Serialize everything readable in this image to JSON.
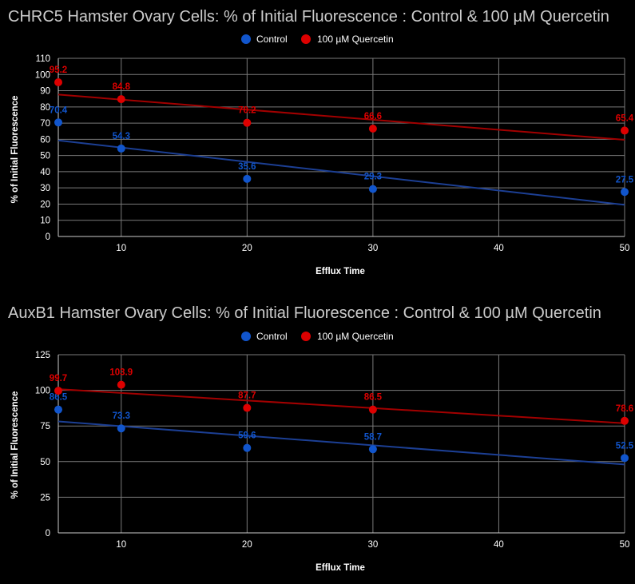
{
  "chart_data": [
    {
      "type": "scatter",
      "title": "CHRC5 Hamster Ovary Cells: % of Initial Fluorescence : Control & 100 µM Quercetin",
      "xlabel": "Efflux Time",
      "ylabel": "% of Initial Fluorescence",
      "xlim": [
        5,
        50
      ],
      "ylim": [
        0,
        110
      ],
      "x_ticks": [
        10,
        20,
        30,
        40,
        50
      ],
      "y_ticks": [
        0,
        10,
        20,
        30,
        40,
        50,
        60,
        70,
        80,
        90,
        100,
        110
      ],
      "grid": true,
      "legend_position": "top",
      "trendlines": true,
      "series": [
        {
          "name": "Control",
          "color": "#1155cc",
          "x": [
            5,
            10,
            20,
            30,
            50
          ],
          "y": [
            70.4,
            54.3,
            35.6,
            29.3,
            27.5
          ],
          "labels": [
            "70.4",
            "54.3",
            "35.6",
            "29.3",
            "27.5"
          ],
          "trendline_color": "#1c3f94"
        },
        {
          "name": "100 µM Quercetin",
          "color": "#dd0000",
          "x": [
            5,
            10,
            20,
            30,
            50
          ],
          "y": [
            95.2,
            84.8,
            70.2,
            66.6,
            65.4
          ],
          "labels": [
            "95.2",
            "84.8",
            "70.2",
            "66.6",
            "65.4"
          ],
          "trendline_color": "#a20000"
        }
      ]
    },
    {
      "type": "scatter",
      "title": "AuxB1 Hamster Ovary Cells: % of Initial Fluorescence : Control & 100 µM Quercetin",
      "xlabel": "Efflux Time",
      "ylabel": "% of Initial Fluorescence",
      "xlim": [
        5,
        50
      ],
      "ylim": [
        0,
        125
      ],
      "x_ticks": [
        10,
        20,
        30,
        40,
        50
      ],
      "y_ticks": [
        0,
        25,
        50,
        75,
        100,
        125
      ],
      "grid": true,
      "legend_position": "top",
      "trendlines": true,
      "series": [
        {
          "name": "Control",
          "color": "#1155cc",
          "x": [
            5,
            10,
            20,
            30,
            50
          ],
          "y": [
            86.5,
            73.3,
            59.6,
            58.7,
            52.5
          ],
          "labels": [
            "86.5",
            "73.3",
            "59.6",
            "58.7",
            "52.5"
          ],
          "trendline_color": "#1c3f94"
        },
        {
          "name": "100 µM Quercetin",
          "color": "#dd0000",
          "x": [
            5,
            10,
            20,
            30,
            50
          ],
          "y": [
            99.7,
            103.9,
            87.7,
            86.5,
            78.6
          ],
          "labels": [
            "99.7",
            "103.9",
            "87.7",
            "86.5",
            "78.6"
          ],
          "trendline_color": "#a20000"
        }
      ]
    }
  ]
}
